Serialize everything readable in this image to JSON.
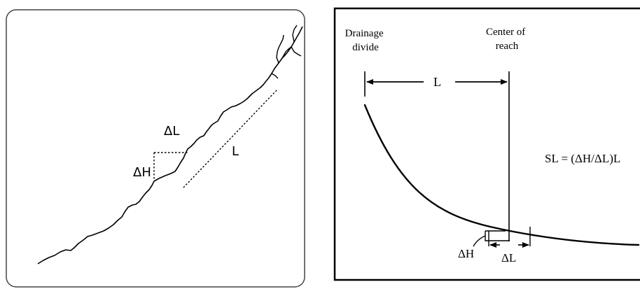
{
  "left_panel": {
    "delta_l": "ΔL",
    "delta_h": "ΔH",
    "length": "L"
  },
  "right_panel": {
    "drainage_divide": [
      "Drainage",
      "divide"
    ],
    "center_of_reach": [
      "Center of",
      "reach"
    ],
    "length": "L",
    "formula": "SL = (ΔH/ΔL)L",
    "delta_h": "ΔH",
    "delta_l": "ΔL"
  },
  "colors": {
    "ink": "#000000",
    "background": "#ffffff",
    "panel_border": "#444444"
  }
}
